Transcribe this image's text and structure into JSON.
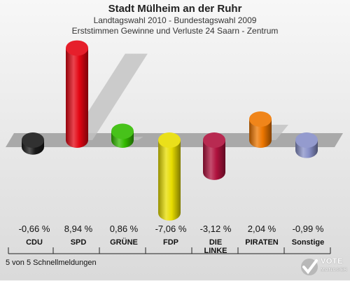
{
  "header": {
    "title": "Stadt Mülheim an der Ruhr",
    "subtitle1": "Landtagswahl 2010 - Bundestagswahl 2009",
    "subtitle2": "Erststimmen Gewinne und Verluste 24 Saarn - Zentrum"
  },
  "footer": {
    "status": "5 von 5 Schnellmeldungen",
    "logo_line1": "VOTE",
    "logo_line2": "MANAGER"
  },
  "chart_data": {
    "type": "bar",
    "title": "Stadt Mülheim an der Ruhr",
    "subtitle": "Landtagswahl 2010 - Bundestagswahl 2009 · Erststimmen Gewinne und Verluste 24 Saarn - Zentrum",
    "categories": [
      "CDU",
      "SPD",
      "GRÜNE",
      "FDP",
      "DIE LINKE",
      "PIRATEN",
      "Sonstige"
    ],
    "category_lines": [
      [
        "CDU"
      ],
      [
        "SPD"
      ],
      [
        "GRÜNE"
      ],
      [
        "FDP"
      ],
      [
        "DIE",
        "LINKE"
      ],
      [
        "PIRATEN"
      ],
      [
        "Sonstige"
      ]
    ],
    "values": [
      -0.66,
      8.94,
      0.86,
      -7.06,
      -3.12,
      2.04,
      -0.99
    ],
    "value_labels": [
      "-0,66 %",
      "8,94 %",
      "0,86 %",
      "-7,06 %",
      "-3,12 %",
      "2,04 %",
      "-0,99 %"
    ],
    "colors": [
      "#1a1a1a",
      "#e30613",
      "#33bb00",
      "#e8dd00",
      "#b0123e",
      "#ee7700",
      "#8890c8"
    ],
    "unit": "%",
    "ylim": [
      -9,
      11
    ],
    "grid": false
  }
}
